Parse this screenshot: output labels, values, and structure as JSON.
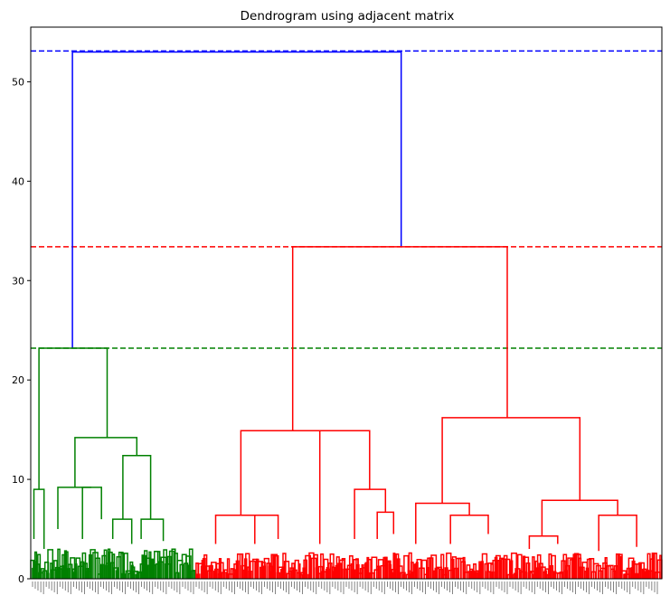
{
  "chart_data": {
    "type": "dendrogram",
    "title": "Dendrogram using adjacent matrix",
    "xlabel": "",
    "ylabel": "",
    "ylim": [
      0,
      55.5
    ],
    "yticks": [
      0,
      10,
      20,
      30,
      40,
      50
    ],
    "xlim": [
      0,
      1000
    ],
    "colors": {
      "left_cluster": "#008000",
      "right_cluster": "#ff0000",
      "top": "#0000ff"
    },
    "cut_lines": [
      {
        "y": 53.1,
        "color": "#0000ff",
        "style": "dashed"
      },
      {
        "y": 33.4,
        "color": "#ff0000",
        "style": "dashed"
      },
      {
        "y": 23.2,
        "color": "#008000",
        "style": "dashed"
      }
    ],
    "links": [
      {
        "x": [
          66,
          66,
          587,
          587
        ],
        "y": [
          23.2,
          53.0,
          53.0,
          33.4
        ],
        "color": "#0000ff"
      },
      {
        "x": [
          13,
          13,
          121,
          121
        ],
        "y": [
          9.0,
          23.2,
          23.2,
          14.2
        ],
        "color": "#008000"
      },
      {
        "x": [
          5,
          5,
          21,
          21
        ],
        "y": [
          4.0,
          9.0,
          9.0,
          3.0
        ],
        "color": "#008000"
      },
      {
        "x": [
          70,
          70,
          168,
          168
        ],
        "y": [
          9.2,
          14.2,
          14.2,
          12.4
        ],
        "color": "#008000"
      },
      {
        "x": [
          43,
          43,
          96,
          96
        ],
        "y": [
          5.0,
          9.2,
          9.2,
          9.2
        ],
        "color": "#008000"
      },
      {
        "x": [
          82,
          82,
          112,
          112
        ],
        "y": [
          4.0,
          9.2,
          9.2,
          6.0
        ],
        "color": "#008000"
      },
      {
        "x": [
          146,
          146,
          190,
          190
        ],
        "y": [
          6.0,
          12.4,
          12.4,
          6.0
        ],
        "color": "#008000"
      },
      {
        "x": [
          130,
          130,
          160,
          160
        ],
        "y": [
          4.0,
          6.0,
          6.0,
          3.5
        ],
        "color": "#008000"
      },
      {
        "x": [
          175,
          175,
          210,
          210
        ],
        "y": [
          4.0,
          6.0,
          6.0,
          3.8
        ],
        "color": "#008000"
      },
      {
        "x": [
          415,
          415,
          755,
          755
        ],
        "y": [
          14.9,
          33.4,
          33.4,
          16.2
        ],
        "color": "#ff0000"
      },
      {
        "x": [
          333,
          333,
          497,
          497
        ],
        "y": [
          6.4,
          14.9,
          14.9,
          14.9
        ],
        "color": "#ff0000"
      },
      {
        "x": [
          293,
          293,
          373,
          373
        ],
        "y": [
          3.5,
          6.4,
          6.4,
          6.4
        ],
        "color": "#ff0000"
      },
      {
        "x": [
          355,
          355,
          392,
          392
        ],
        "y": [
          3.5,
          6.4,
          6.4,
          4.0
        ],
        "color": "#ff0000"
      },
      {
        "x": [
          458,
          458,
          537,
          537
        ],
        "y": [
          4.0,
          14.9,
          14.9,
          9.0
        ],
        "color": "#ff0000"
      },
      {
        "x": [
          458,
          458,
          458,
          458
        ],
        "y": [
          3.5,
          4.0,
          4.0,
          3.5
        ],
        "color": "#ff0000"
      },
      {
        "x": [
          513,
          513,
          562,
          562
        ],
        "y": [
          4.0,
          9.0,
          9.0,
          6.7
        ],
        "color": "#ff0000"
      },
      {
        "x": [
          549,
          549,
          575,
          575
        ],
        "y": [
          4.0,
          6.7,
          6.7,
          4.5
        ],
        "color": "#ff0000"
      },
      {
        "x": [
          652,
          652,
          870,
          870
        ],
        "y": [
          7.6,
          16.2,
          16.2,
          7.9
        ],
        "color": "#ff0000"
      },
      {
        "x": [
          610,
          610,
          695,
          695
        ],
        "y": [
          3.5,
          7.6,
          7.6,
          6.4
        ],
        "color": "#ff0000"
      },
      {
        "x": [
          665,
          665,
          725,
          725
        ],
        "y": [
          3.5,
          6.4,
          6.4,
          4.5
        ],
        "color": "#ff0000"
      },
      {
        "x": [
          810,
          810,
          930,
          930
        ],
        "y": [
          4.3,
          7.9,
          7.9,
          6.4
        ],
        "color": "#ff0000"
      },
      {
        "x": [
          790,
          790,
          835,
          835
        ],
        "y": [
          3.0,
          4.3,
          4.3,
          3.5
        ],
        "color": "#ff0000"
      },
      {
        "x": [
          900,
          900,
          960,
          960
        ],
        "y": [
          2.8,
          6.4,
          6.4,
          3.2
        ],
        "color": "#ff0000"
      }
    ]
  }
}
